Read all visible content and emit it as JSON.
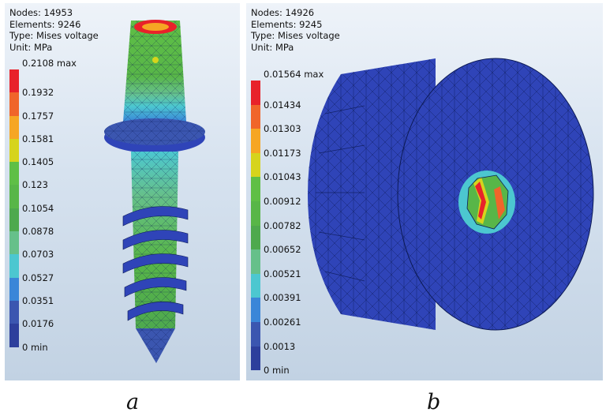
{
  "panels": [
    {
      "caption": "a",
      "nodes": "Nodes: 14953",
      "elements": "Elements: 9246",
      "type": "Type: Mises voltage",
      "unit": "Unit: MPa",
      "legend_max": "0.2108 max",
      "legend_values": [
        "0.1932",
        "0.1757",
        "0.1581",
        "0.1405",
        "0.123",
        "0.1054",
        "0.0878",
        "0.0703",
        "0.0527",
        "0.0351",
        "0.0176",
        "0 min"
      ]
    },
    {
      "caption": "b",
      "nodes": "Nodes: 14926",
      "elements": "Elements: 9245",
      "type": "Type: Mises voltage",
      "unit": "Unit: MPa",
      "legend_max": "0.01564 max",
      "legend_values": [
        "0.01434",
        "0.01303",
        "0.01173",
        "0.01043",
        "0.00912",
        "0.00782",
        "0.00652",
        "0.00521",
        "0.00391",
        "0.00261",
        "0.0013",
        "0 min"
      ]
    }
  ],
  "colors": {
    "scale": [
      "#e8222a",
      "#f0652a",
      "#f6a623",
      "#d6d41c",
      "#5fbf46",
      "#58b648",
      "#4ea94e",
      "#66c08a",
      "#4cc7d0",
      "#3a86d8",
      "#3b56b0",
      "#2d3f9c"
    ],
    "mesh_blue": "#2f44b8",
    "mesh_line": "#0c1a55"
  }
}
